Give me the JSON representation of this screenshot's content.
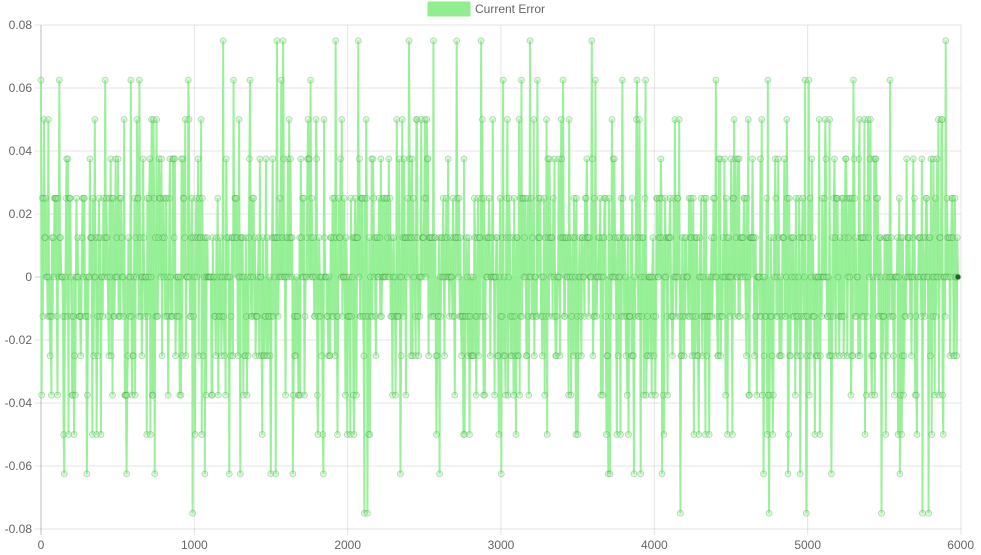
{
  "chart_data": {
    "type": "line",
    "title": "",
    "xlabel": "",
    "ylabel": "",
    "xlim": [
      0,
      6000
    ],
    "ylim": [
      -0.08,
      0.08
    ],
    "x_ticks": [
      0,
      1000,
      2000,
      3000,
      4000,
      5000,
      6000
    ],
    "x_tick_labels": [
      "0",
      "1000",
      "2000",
      "3000",
      "4000",
      "5000",
      "6000"
    ],
    "y_ticks": [
      0.08,
      0.06,
      0.04,
      0.02,
      0,
      -0.02,
      -0.04,
      -0.06,
      -0.08
    ],
    "y_tick_labels": [
      "0.08",
      "0.06",
      "0.04",
      "0.02",
      "0",
      "-0.02",
      "-0.04",
      "-0.06",
      "-0.08"
    ],
    "grid": true,
    "legend_position": "top-center",
    "series": [
      {
        "name": "Current Error",
        "color": "#90ee90",
        "quantization_step": 0.0125,
        "x_range": [
          0,
          5980
        ],
        "sample_points": [
          {
            "x": 0,
            "y": 0.0625
          },
          {
            "x": 20,
            "y": 0.05
          },
          {
            "x": 60,
            "y": -0.025
          },
          {
            "x": 120,
            "y": 0.0625
          },
          {
            "x": 180,
            "y": -0.05
          },
          {
            "x": 300,
            "y": -0.0625
          },
          {
            "x": 420,
            "y": 0.0625
          },
          {
            "x": 560,
            "y": -0.0625
          },
          {
            "x": 640,
            "y": 0.0625
          },
          {
            "x": 740,
            "y": -0.0625
          },
          {
            "x": 960,
            "y": 0.0625
          },
          {
            "x": 990,
            "y": -0.075
          },
          {
            "x": 1190,
            "y": 0.075
          },
          {
            "x": 1300,
            "y": -0.0625
          },
          {
            "x": 1500,
            "y": -0.0625
          },
          {
            "x": 1540,
            "y": 0.075
          },
          {
            "x": 1580,
            "y": 0.075
          },
          {
            "x": 1760,
            "y": 0.0625
          },
          {
            "x": 1840,
            "y": -0.0625
          },
          {
            "x": 1920,
            "y": 0.075
          },
          {
            "x": 2070,
            "y": 0.075
          },
          {
            "x": 2110,
            "y": -0.075
          },
          {
            "x": 2130,
            "y": -0.075
          },
          {
            "x": 2400,
            "y": 0.075
          },
          {
            "x": 2560,
            "y": 0.075
          },
          {
            "x": 2600,
            "y": -0.0625
          },
          {
            "x": 2710,
            "y": 0.075
          },
          {
            "x": 2870,
            "y": 0.075
          },
          {
            "x": 3000,
            "y": -0.0625
          },
          {
            "x": 3190,
            "y": 0.075
          },
          {
            "x": 3590,
            "y": 0.075
          },
          {
            "x": 3910,
            "y": -0.0625
          },
          {
            "x": 4050,
            "y": -0.0625
          },
          {
            "x": 4170,
            "y": -0.075
          },
          {
            "x": 4400,
            "y": 0.0625
          },
          {
            "x": 4750,
            "y": -0.075
          },
          {
            "x": 4870,
            "y": -0.0625
          },
          {
            "x": 4990,
            "y": -0.075
          },
          {
            "x": 5300,
            "y": 0.0625
          },
          {
            "x": 5480,
            "y": -0.075
          },
          {
            "x": 5600,
            "y": -0.0625
          },
          {
            "x": 5750,
            "y": -0.075
          },
          {
            "x": 5790,
            "y": -0.075
          },
          {
            "x": 5900,
            "y": 0.075
          },
          {
            "x": 5980,
            "y": 0
          }
        ]
      }
    ]
  }
}
